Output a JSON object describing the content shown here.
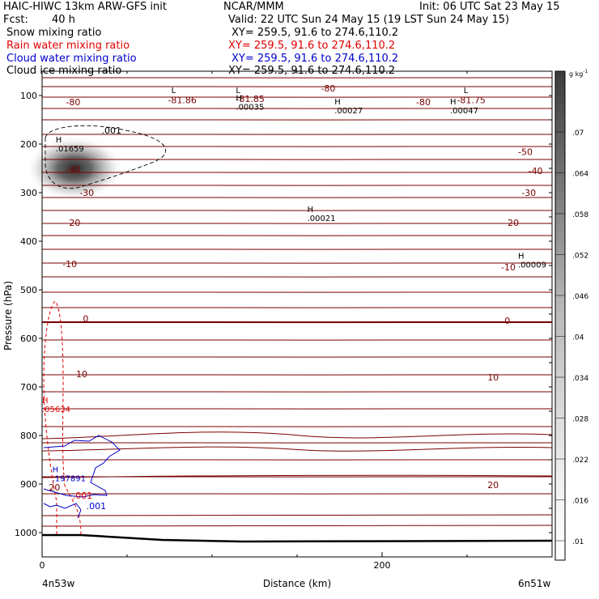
{
  "header": {
    "title_left": "HAIC-HIWC 13km ARW-GFS init",
    "org": "NCAR/MMM",
    "init": "Init: 06 UTC Sat 23 May 15",
    "fcst_label": "Fcst:",
    "fcst_value": "40 h",
    "valid": "Valid: 22 UTC Sun 24 May 15 (19 LST Sun 24 May 15)",
    "fields": [
      {
        "name": "Snow mixing ratio",
        "xy": "XY= 259.5, 91.6 to 274.6,110.2",
        "color": "#000000"
      },
      {
        "name": "Rain water mixing ratio",
        "xy": "XY= 259.5, 91.6 to 274.6,110.2",
        "color": "#e00000"
      },
      {
        "name": "Cloud water mixing ratio",
        "xy": "XY= 259.5, 91.6 to 274.6,110.2",
        "color": "#0000cc"
      },
      {
        "name": "Cloud ice mixing ratio",
        "xy": "XY= 259.5, 91.6 to 274.6,110.2",
        "color": "#000000"
      }
    ]
  },
  "chart_data": {
    "type": "contour",
    "ylabel": "Pressure (hPa)",
    "xlabel": "Distance (km)",
    "x_start_label": "4n53w",
    "x_end_label": "6n51w",
    "xlim": [
      0,
      300
    ],
    "ylim": [
      1050,
      50
    ],
    "x_ticks": [
      0,
      200
    ],
    "y_ticks": [
      100,
      200,
      300,
      400,
      500,
      600,
      700,
      800,
      900,
      1000
    ],
    "colorbar": {
      "unit": "g kg",
      "unit_sup": "-1",
      "ticks": [
        ".07",
        ".064",
        ".058",
        ".052",
        ".046",
        ".04",
        ".034",
        ".028",
        ".022",
        ".016",
        ".01"
      ]
    },
    "temperature_contours": {
      "color": "#7a0000",
      "labels": [
        {
          "text": "-80",
          "x": 14,
          "p": 113
        },
        {
          "text": "-80",
          "x": 164,
          "p": 85
        },
        {
          "text": "-80",
          "x": 220,
          "p": 113
        },
        {
          "text": "-81.86",
          "x": 74,
          "p": 109
        },
        {
          "text": "-81.75",
          "x": 244,
          "p": 109
        },
        {
          "text": "-81.85",
          "x": 114,
          "p": 107
        },
        {
          "text": "-50",
          "x": 280,
          "p": 216
        },
        {
          "text": "-40",
          "x": 286,
          "p": 255
        },
        {
          "text": "-40",
          "x": 14,
          "p": 252
        },
        {
          "text": "-30",
          "x": 22,
          "p": 300
        },
        {
          "text": "-30",
          "x": 282,
          "p": 300
        },
        {
          "text": "-20",
          "x": 14,
          "p": 362
        },
        {
          "text": "-20",
          "x": 272,
          "p": 362
        },
        {
          "text": "-10",
          "x": 12,
          "p": 447
        },
        {
          "text": "-10",
          "x": 270,
          "p": 453
        },
        {
          "text": "0",
          "x": 24,
          "p": 559
        },
        {
          "text": "0",
          "x": 272,
          "p": 563
        },
        {
          "text": "10",
          "x": 20,
          "p": 673
        },
        {
          "text": "10",
          "x": 262,
          "p": 680
        },
        {
          "text": "20",
          "x": 4,
          "p": 907
        },
        {
          "text": "20",
          "x": 262,
          "p": 902
        }
      ]
    },
    "extrema": [
      {
        "type": "L",
        "x": 76,
        "p": 95
      },
      {
        "type": "L",
        "x": 114,
        "p": 95
      },
      {
        "type": "L",
        "x": 248,
        "p": 95
      },
      {
        "type": "H",
        "x": 114,
        "p": 111,
        "value": ".00035"
      },
      {
        "type": "H",
        "x": 172,
        "p": 118,
        "value": ".00027"
      },
      {
        "type": "H",
        "x": 240,
        "p": 118,
        "value": ".00047"
      },
      {
        "type": "H",
        "x": 8,
        "p": 197,
        "value": ".01659"
      },
      {
        "type": "H",
        "x": 156,
        "p": 340,
        "value": ".00021"
      },
      {
        "type": "H",
        "x": 280,
        "p": 436,
        "value": ".00009"
      },
      {
        "type": "H",
        "x": 6,
        "p": 876,
        "value": ".197891"
      },
      {
        "type": "H",
        "x": 0,
        "p": 733,
        "value": ".05634",
        "color": "#e00000"
      }
    ],
    "field_labels": [
      {
        "text": ".001",
        "x": 35,
        "p": 172,
        "color": "#000000"
      },
      {
        "text": ".001",
        "x": 18,
        "p": 923,
        "color": "#e00000"
      },
      {
        "text": ".001",
        "x": 26,
        "p": 945,
        "color": "#0000cc"
      }
    ]
  }
}
